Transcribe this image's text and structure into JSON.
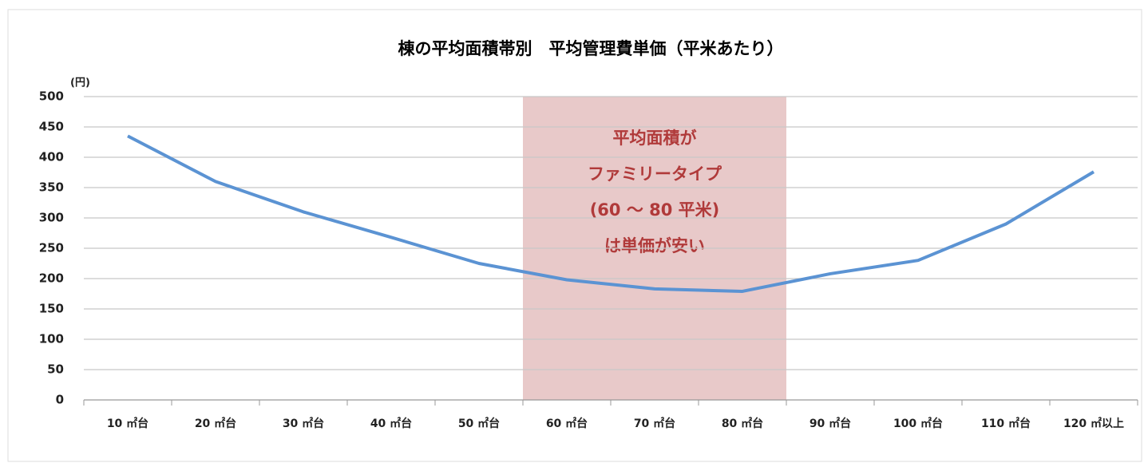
{
  "chart_data": {
    "type": "line",
    "title": "棟の平均面積帯別　平均管理費単価（平米あたり）",
    "y_unit": "(円)",
    "categories": [
      "10 ㎡台",
      "20 ㎡台",
      "30 ㎡台",
      "40 ㎡台",
      "50 ㎡台",
      "60 ㎡台",
      "70 ㎡台",
      "80 ㎡台",
      "90 ㎡台",
      "100 ㎡台",
      "110 ㎡台",
      "120 ㎡以上"
    ],
    "series": [
      {
        "name": "平均管理費単価",
        "color": "#5b93d3",
        "values": [
          435,
          360,
          310,
          268,
          225,
          198,
          183,
          179,
          208,
          230,
          290,
          376
        ]
      }
    ],
    "ylim": [
      0,
      500
    ],
    "yticks": [
      0,
      50,
      100,
      150,
      200,
      250,
      300,
      350,
      400,
      450,
      500
    ],
    "grid": true,
    "highlight_categories": [
      "60 ㎡台",
      "80 ㎡台"
    ],
    "highlight_color": "#e8c9c9",
    "annotation": [
      "平均面積が",
      "ファミリータイプ",
      "(60 ～ 80 平米)",
      "は単価が安い"
    ]
  }
}
